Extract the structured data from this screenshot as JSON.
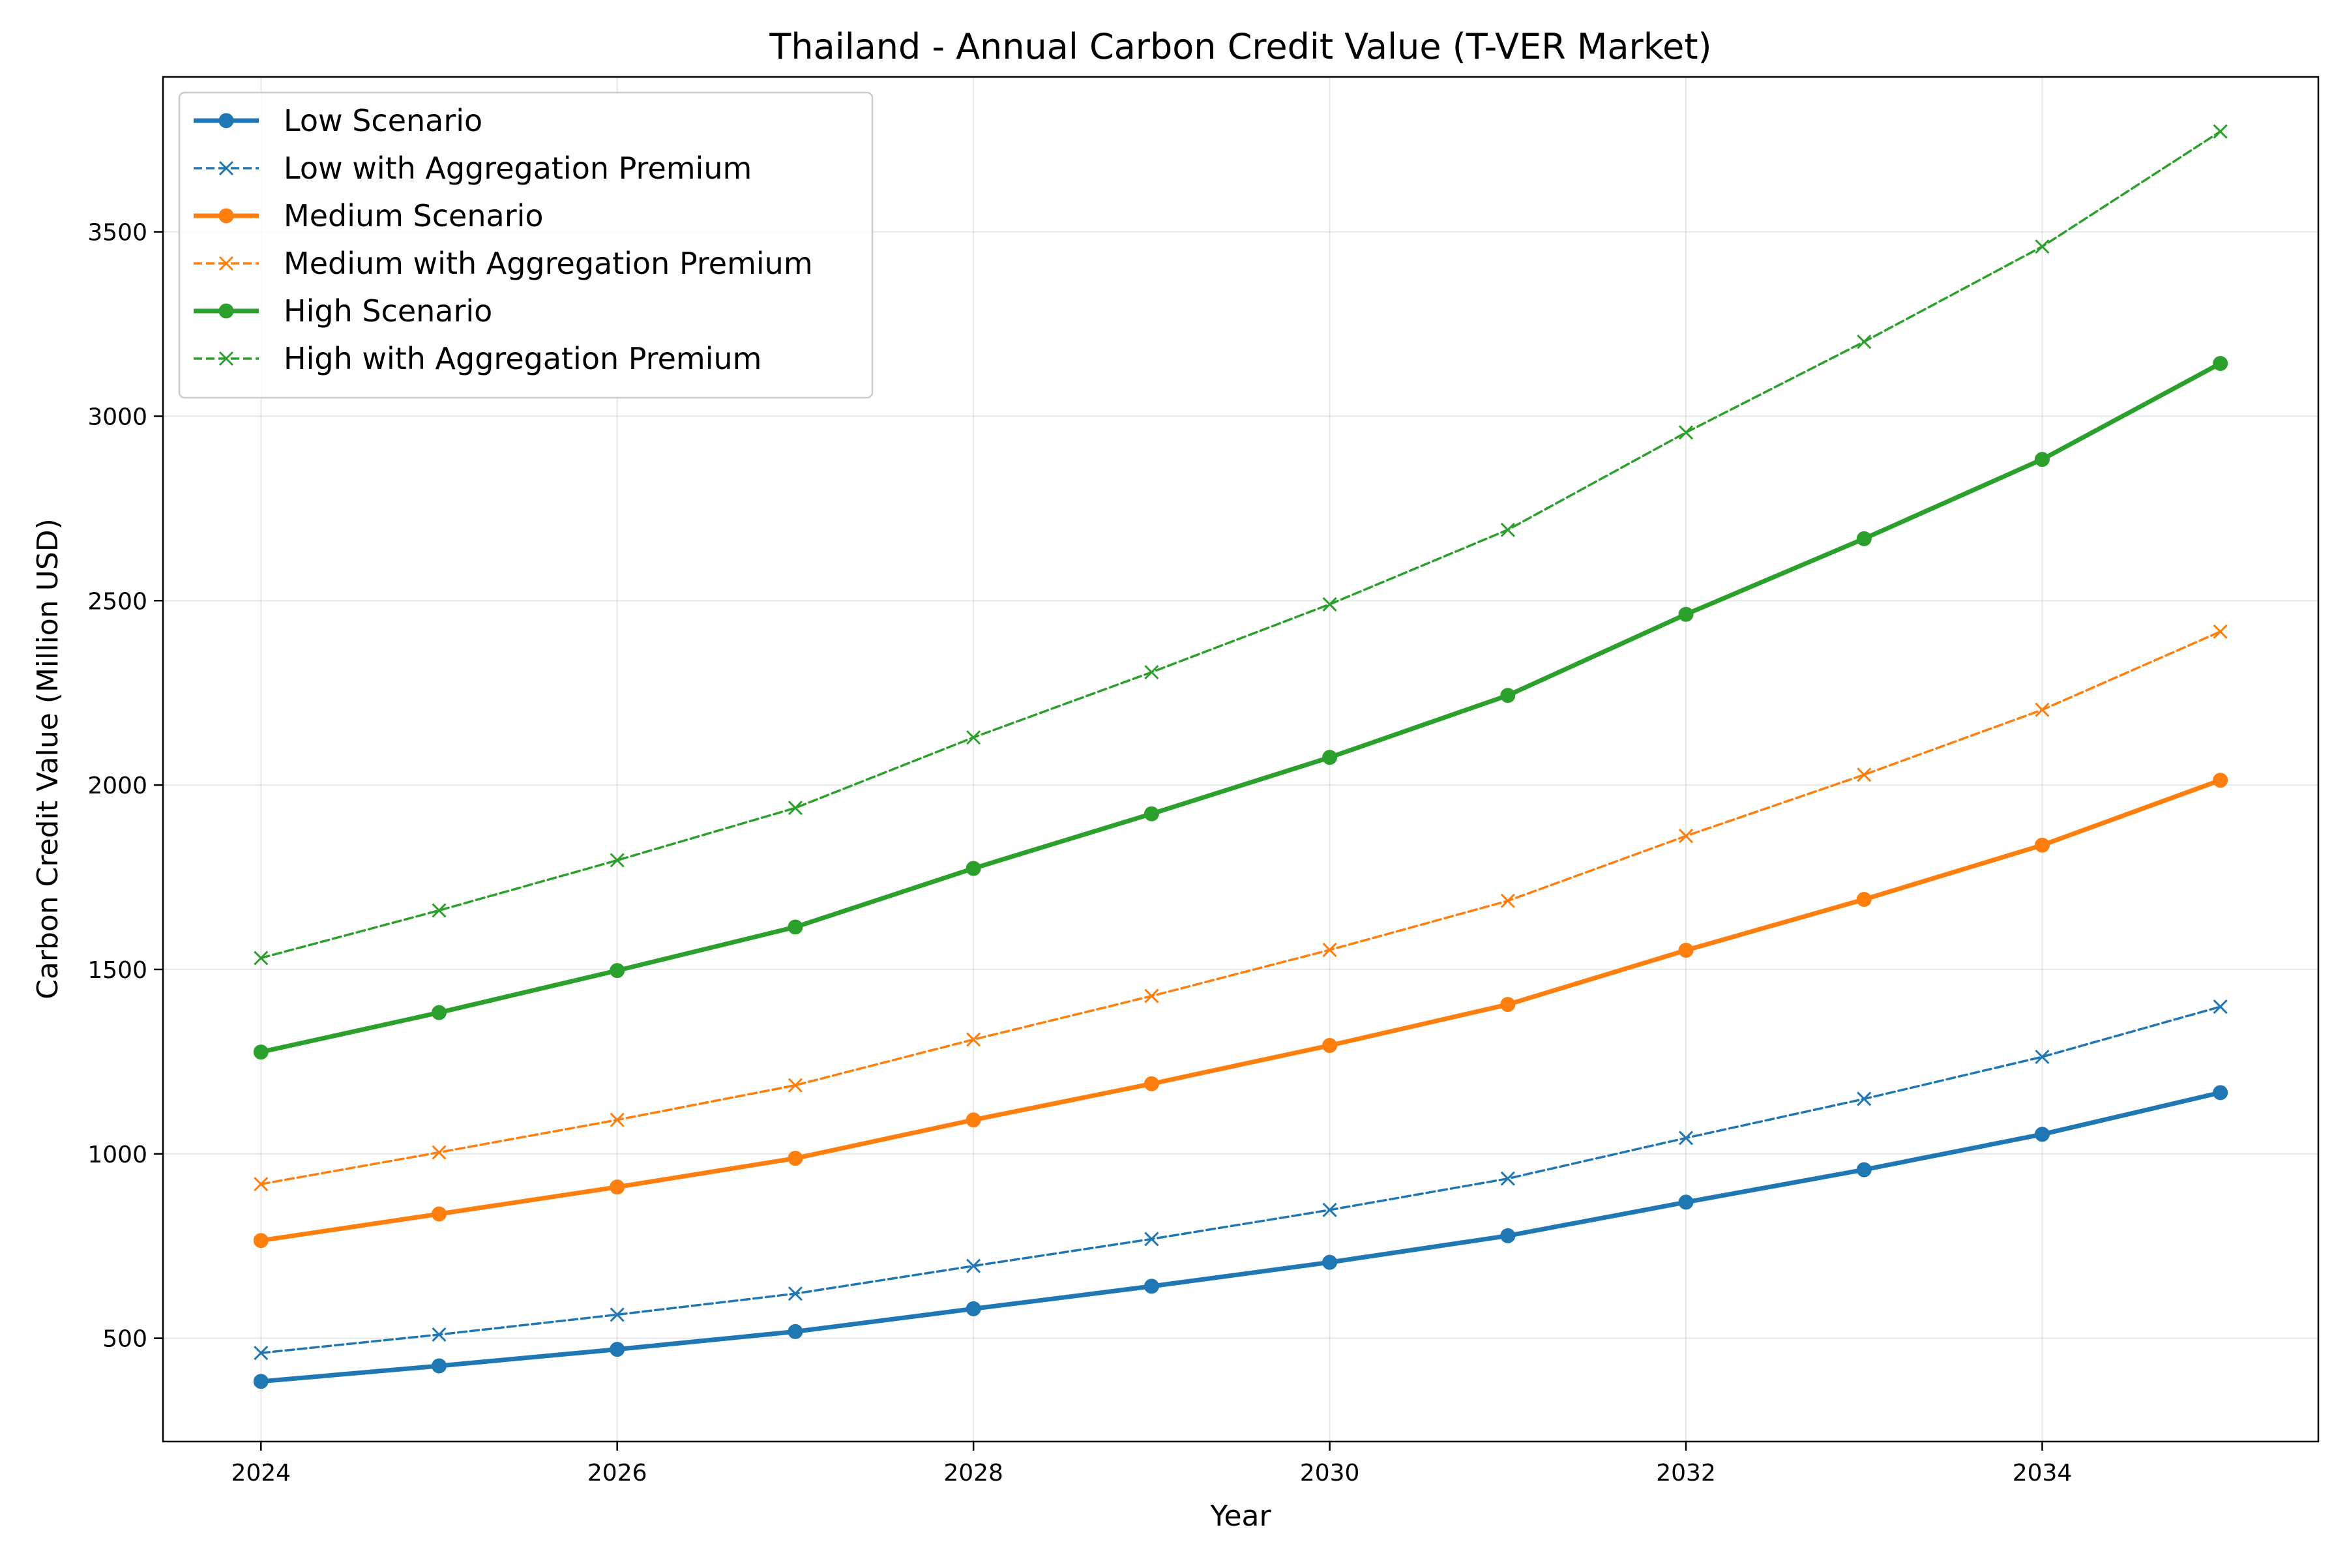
{
  "chart_data": {
    "type": "line",
    "title": "Thailand - Annual Carbon Credit Value (T-VER Market)",
    "xlabel": "Year",
    "ylabel": "Carbon Credit Value (Million USD)",
    "xlim": [
      2023.45,
      2035.55
    ],
    "ylim": [
      220,
      3920
    ],
    "x": [
      2024,
      2025,
      2026,
      2027,
      2028,
      2029,
      2030,
      2031,
      2032,
      2033,
      2034,
      2035
    ],
    "x_ticks": [
      2024,
      2026,
      2028,
      2030,
      2032,
      2034
    ],
    "y_ticks": [
      500,
      1000,
      1500,
      2000,
      2500,
      3000,
      3500
    ],
    "grid": true,
    "legend_position": "top-left",
    "series": [
      {
        "name": "Low Scenario",
        "color": "#1f77b4",
        "style": "solid",
        "marker": "circle",
        "values": [
          383,
          425,
          470,
          518,
          580,
          641,
          706,
          778,
          869,
          957,
          1053,
          1166
        ]
      },
      {
        "name": "Low with Aggregation Premium",
        "color": "#1f77b4",
        "style": "dashed",
        "marker": "x",
        "values": [
          460,
          510,
          564,
          621,
          696,
          769,
          848,
          933,
          1043,
          1149,
          1263,
          1399
        ]
      },
      {
        "name": "Medium Scenario",
        "color": "#ff7f0e",
        "style": "solid",
        "marker": "circle",
        "values": [
          765,
          837,
          910,
          988,
          1092,
          1190,
          1294,
          1405,
          1552,
          1690,
          1837,
          2013
        ]
      },
      {
        "name": "Medium with Aggregation Premium",
        "color": "#ff7f0e",
        "style": "dashed",
        "marker": "x",
        "values": [
          918,
          1004,
          1092,
          1186,
          1310,
          1428,
          1553,
          1686,
          1862,
          2028,
          2204,
          2416
        ]
      },
      {
        "name": "High Scenario",
        "color": "#2ca02c",
        "style": "solid",
        "marker": "circle",
        "values": [
          1276,
          1383,
          1497,
          1615,
          1774,
          1922,
          2075,
          2243,
          2463,
          2668,
          2883,
          3143
        ]
      },
      {
        "name": "High with Aggregation Premium",
        "color": "#2ca02c",
        "style": "dashed",
        "marker": "x",
        "values": [
          1531,
          1660,
          1796,
          1938,
          2129,
          2306,
          2490,
          2692,
          2956,
          3202,
          3460,
          3772
        ]
      }
    ]
  }
}
